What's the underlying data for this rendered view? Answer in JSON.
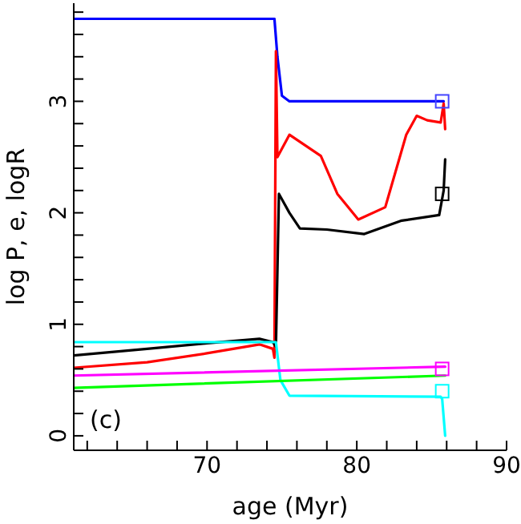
{
  "chart_data": {
    "type": "line",
    "xlabel": "age (Myr)",
    "ylabel": "log P,  e,  logR",
    "annotations": [
      "(c)"
    ],
    "xlim": [
      61.1,
      90
    ],
    "ylim": [
      -0.13,
      3.88
    ],
    "xticks": [
      {
        "value": 62,
        "label": null
      },
      {
        "value": 64,
        "label": null
      },
      {
        "value": 66,
        "label": null
      },
      {
        "value": 68,
        "label": null
      },
      70,
      {
        "value": 72,
        "label": null
      },
      {
        "value": 74,
        "label": null
      },
      {
        "value": 76,
        "label": null
      },
      {
        "value": 78,
        "label": null
      },
      80,
      {
        "value": 82,
        "label": null
      },
      {
        "value": 84,
        "label": null
      },
      {
        "value": 86,
        "label": null
      },
      {
        "value": 88,
        "label": null
      },
      90
    ],
    "yticks": [
      0,
      {
        "value": 0.2,
        "label": null
      },
      {
        "value": 0.4,
        "label": null
      },
      {
        "value": 0.6,
        "label": null
      },
      {
        "value": 0.8,
        "label": null
      },
      1,
      {
        "value": 1.2,
        "label": null
      },
      {
        "value": 1.4,
        "label": null
      },
      {
        "value": 1.6,
        "label": null
      },
      {
        "value": 1.8,
        "label": null
      },
      2,
      {
        "value": 2.2,
        "label": null
      },
      {
        "value": 2.4,
        "label": null
      },
      {
        "value": 2.6,
        "label": null
      },
      {
        "value": 2.8,
        "label": null
      },
      3,
      {
        "value": 3.2,
        "label": null
      },
      {
        "value": 3.4,
        "label": null
      },
      {
        "value": 3.6,
        "label": null
      },
      {
        "value": 3.8,
        "label": null
      }
    ],
    "grid": false,
    "legend": false,
    "marker": "none",
    "line_style": "solid",
    "series": [
      {
        "color": "#0000ff",
        "x": [
          61.1,
          74.5,
          74.7,
          75.0,
          75.5,
          85.8
        ],
        "values": [
          3.74,
          3.74,
          3.4,
          3.05,
          3.0,
          3.0
        ]
      },
      {
        "color": "#ff0000",
        "x": [
          61.1,
          66,
          70,
          73.5,
          74.4,
          74.5,
          74.6,
          74.7,
          75.5,
          77.6,
          78.7,
          80.1,
          81.9,
          83.3,
          84.0,
          84.7,
          85.6,
          85.8,
          85.9
        ],
        "values": [
          0.61,
          0.66,
          0.74,
          0.82,
          0.78,
          0.7,
          3.45,
          2.5,
          2.7,
          2.51,
          2.17,
          1.94,
          2.05,
          2.7,
          2.87,
          2.83,
          2.81,
          2.98,
          2.75
        ]
      },
      {
        "color": "#000000",
        "x": [
          61.1,
          66,
          70,
          73.5,
          74.4,
          74.6,
          74.8,
          75.5,
          76.2,
          78,
          80.5,
          83,
          85.5,
          85.8,
          85.9
        ],
        "values": [
          0.72,
          0.78,
          0.83,
          0.87,
          0.84,
          0.8,
          2.17,
          2.0,
          1.86,
          1.85,
          1.81,
          1.93,
          1.98,
          2.2,
          2.48
        ]
      },
      {
        "color": "#00ffff",
        "x": [
          61.1,
          74.6,
          74.9,
          75.5,
          85.6,
          85.7,
          85.9
        ],
        "values": [
          0.84,
          0.84,
          0.5,
          0.36,
          0.35,
          0.33,
          0.0
        ]
      },
      {
        "color": "#ff00ff",
        "x": [
          61.1,
          85.9
        ],
        "values": [
          0.54,
          0.62
        ]
      },
      {
        "color": "#00ff00",
        "x": [
          61.1,
          85.9
        ],
        "values": [
          0.43,
          0.54
        ]
      },
      {
        "type": "scatter",
        "marker": "square",
        "x": [
          85.7,
          85.7,
          85.7,
          85.7
        ],
        "values": [
          3.0,
          2.17,
          0.4,
          0.6
        ],
        "colors": [
          "#4444ff",
          "#000000",
          "#00ffff",
          "#ff00ff"
        ]
      }
    ]
  }
}
